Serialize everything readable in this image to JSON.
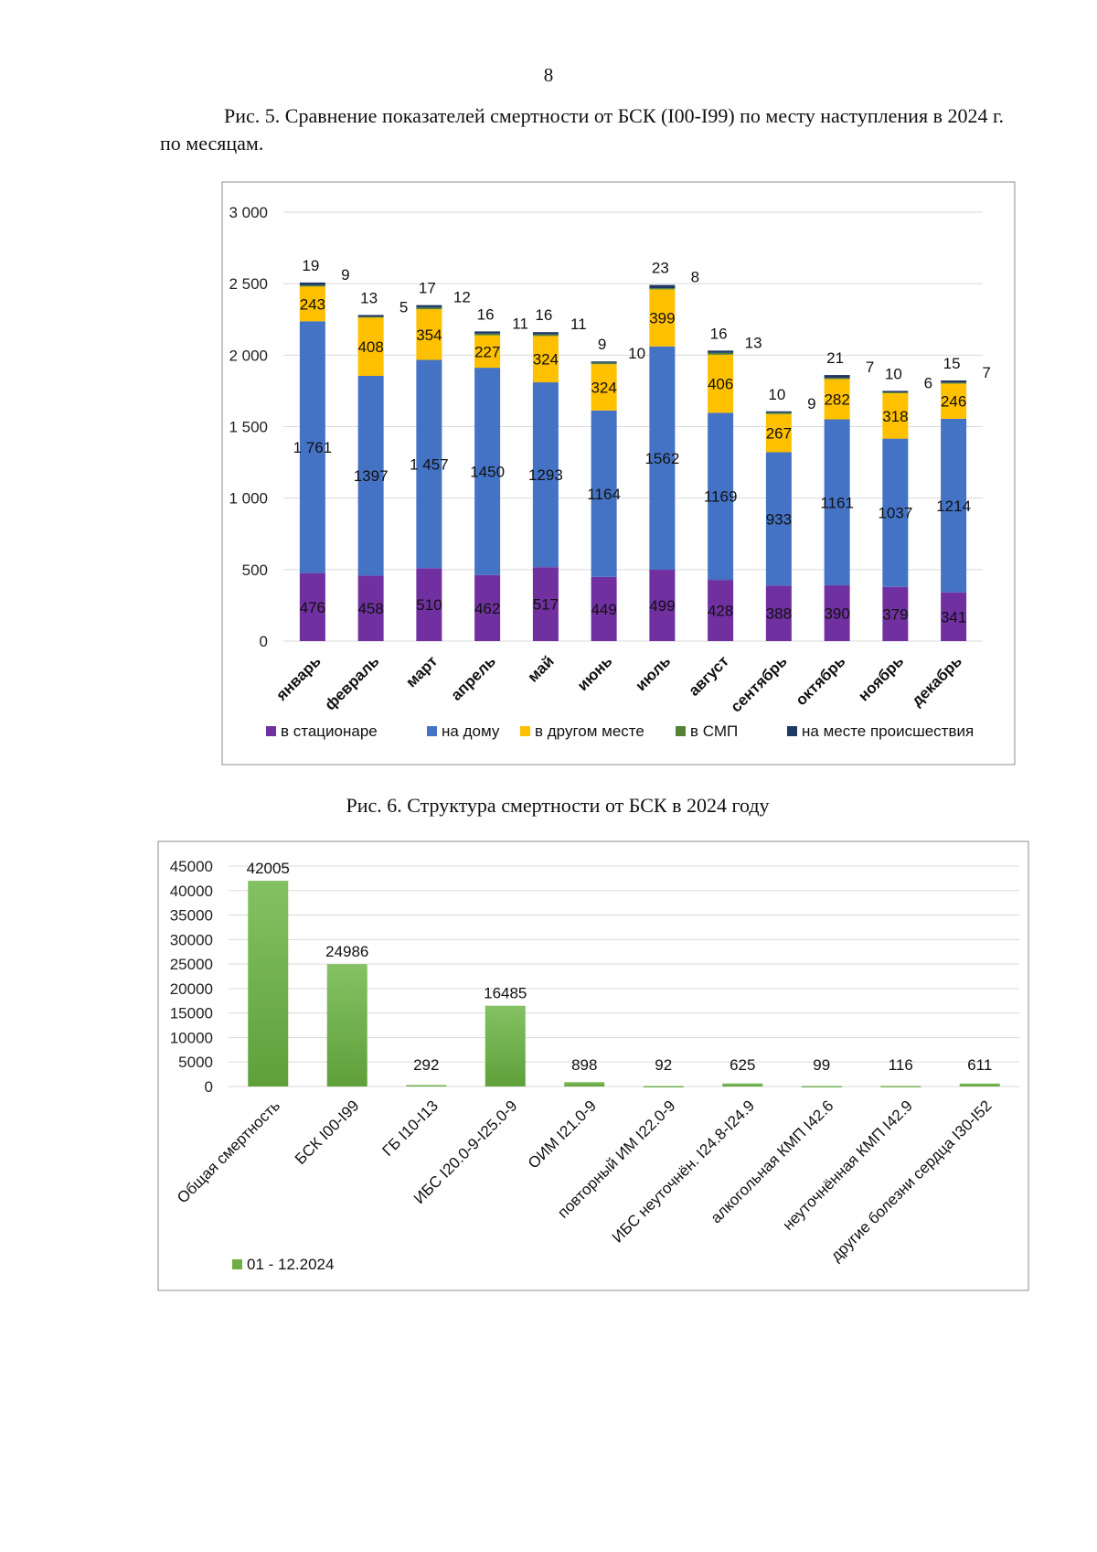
{
  "page": {
    "number": "8",
    "fig5_caption": "Рис. 5. Сравнение показателей смертности от БСК (I00-I99) по месту наступления в 2024 г. по месяцам.",
    "fig6_caption": "Рис. 6. Структура смертности от БСК в 2024 году"
  },
  "chart_data": [
    {
      "type": "bar",
      "stacked": true,
      "title": "",
      "categories": [
        "январь",
        "февраль",
        "март",
        "апрель",
        "май",
        "июнь",
        "июль",
        "август",
        "сентябрь",
        "октябрь",
        "ноябрь",
        "декабрь"
      ],
      "series": [
        {
          "name": "в стационаре",
          "color": "#7030a0",
          "values": [
            476,
            458,
            510,
            462,
            517,
            449,
            499,
            428,
            388,
            390,
            379,
            341
          ],
          "labels": [
            "476",
            "458",
            "510",
            "462",
            "517",
            "449",
            "499",
            "428",
            "388",
            "390",
            "379",
            "341"
          ]
        },
        {
          "name": "на дому",
          "color": "#4472c4",
          "values": [
            1761,
            1397,
            1457,
            1450,
            1293,
            1164,
            1562,
            1169,
            933,
            1161,
            1037,
            1214
          ],
          "labels": [
            "1 761",
            "1397",
            "1 457",
            "1450",
            "1293",
            "1164",
            "1562",
            "1169",
            "933",
            "1161",
            "1037",
            "1214"
          ]
        },
        {
          "name": "в другом месте",
          "color": "#ffc000",
          "values": [
            243,
            408,
            354,
            227,
            324,
            324,
            399,
            406,
            267,
            282,
            318,
            246
          ],
          "labels": [
            "243",
            "408",
            "354",
            "227",
            "324",
            "324",
            "399",
            "406",
            "267",
            "282",
            "318",
            "246"
          ]
        },
        {
          "name": "в СМП",
          "color": "#548235",
          "values": [
            9,
            5,
            12,
            11,
            11,
            10,
            8,
            13,
            9,
            7,
            6,
            7
          ],
          "labels": [
            "9",
            "5",
            "12",
            "11",
            "11",
            "10",
            "8",
            "13",
            "9",
            "7",
            "6",
            "7"
          ]
        },
        {
          "name": "на месте происшествия",
          "color": "#203864",
          "values": [
            19,
            13,
            17,
            16,
            16,
            9,
            23,
            16,
            10,
            21,
            10,
            15
          ],
          "labels": [
            "19",
            "13",
            "17",
            "16",
            "16",
            "9",
            "23",
            "16",
            "10",
            "21",
            "10",
            "15"
          ]
        }
      ],
      "ylim": [
        0,
        3000
      ],
      "yticks": [
        0,
        500,
        1000,
        1500,
        2000,
        2500,
        3000
      ],
      "ytick_labels": [
        "0",
        "500",
        "1 000",
        "1 500",
        "2 000",
        "2 500",
        "3 000"
      ],
      "grid": true,
      "legend": "bottom"
    },
    {
      "type": "bar",
      "title": "",
      "categories": [
        "Общая смертность",
        "БСК I00-I99",
        "ГБ I10-I13",
        "ИБС I20.0-9-I25.0-9",
        "ОИМ I21.0-9",
        "повторный ИМ I22.0-9",
        "ИБС неуточнён. I24.8-I24.9",
        "алкогольная КМП I42.6",
        "неуточнённая КМП I42.9",
        "другие болезни сердца I30-I52"
      ],
      "series": [
        {
          "name": "01 - 12.2024",
          "color": "#70ad47",
          "values": [
            42005,
            24986,
            292,
            16485,
            898,
            92,
            625,
            99,
            116,
            611
          ]
        }
      ],
      "ylim": [
        0,
        45000
      ],
      "yticks": [
        0,
        5000,
        10000,
        15000,
        20000,
        25000,
        30000,
        35000,
        40000,
        45000
      ],
      "grid": true,
      "legend": "bottom-left"
    }
  ]
}
